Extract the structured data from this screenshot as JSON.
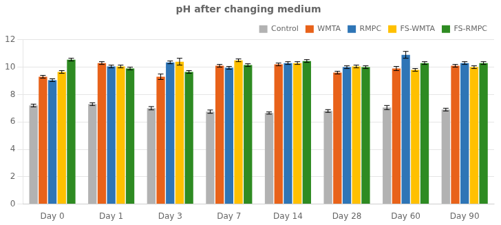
{
  "chart_data": {
    "type": "bar",
    "title": "pH after changing medium",
    "categories": [
      "Day 0",
      "Day 1",
      "Day 3",
      "Day 7",
      "Day 14",
      "Day 28",
      "Day 60",
      "Day 90"
    ],
    "series": [
      {
        "name": "Control",
        "color": "#b2b2b2",
        "values": [
          7.2,
          7.3,
          7.0,
          6.75,
          6.65,
          6.8,
          7.05,
          6.9
        ],
        "errors": [
          0.1,
          0.1,
          0.12,
          0.12,
          0.08,
          0.1,
          0.15,
          0.1
        ]
      },
      {
        "name": "WMTA",
        "color": "#e8621a",
        "values": [
          9.3,
          10.3,
          9.3,
          10.1,
          10.2,
          9.6,
          9.9,
          10.1
        ],
        "errors": [
          0.1,
          0.1,
          0.2,
          0.1,
          0.1,
          0.1,
          0.15,
          0.1
        ]
      },
      {
        "name": "RMPC",
        "color": "#2e75b6",
        "values": [
          9.05,
          10.05,
          10.35,
          9.95,
          10.3,
          10.0,
          10.9,
          10.3
        ],
        "errors": [
          0.1,
          0.1,
          0.1,
          0.1,
          0.1,
          0.1,
          0.25,
          0.1
        ]
      },
      {
        "name": "FS-WMTA",
        "color": "#ffc000",
        "values": [
          9.65,
          10.05,
          10.4,
          10.5,
          10.3,
          10.05,
          9.8,
          10.0
        ],
        "errors": [
          0.1,
          0.1,
          0.25,
          0.1,
          0.1,
          0.1,
          0.1,
          0.1
        ]
      },
      {
        "name": "FS-RMPC",
        "color": "#2e8b22",
        "values": [
          10.55,
          9.9,
          9.65,
          10.15,
          10.45,
          10.0,
          10.3,
          10.3
        ],
        "errors": [
          0.1,
          0.1,
          0.1,
          0.1,
          0.1,
          0.1,
          0.1,
          0.1
        ]
      }
    ],
    "ylim": [
      0,
      12
    ],
    "yticks": [
      0,
      2,
      4,
      6,
      8,
      10,
      12
    ],
    "grid": true,
    "legend": "upper right"
  }
}
